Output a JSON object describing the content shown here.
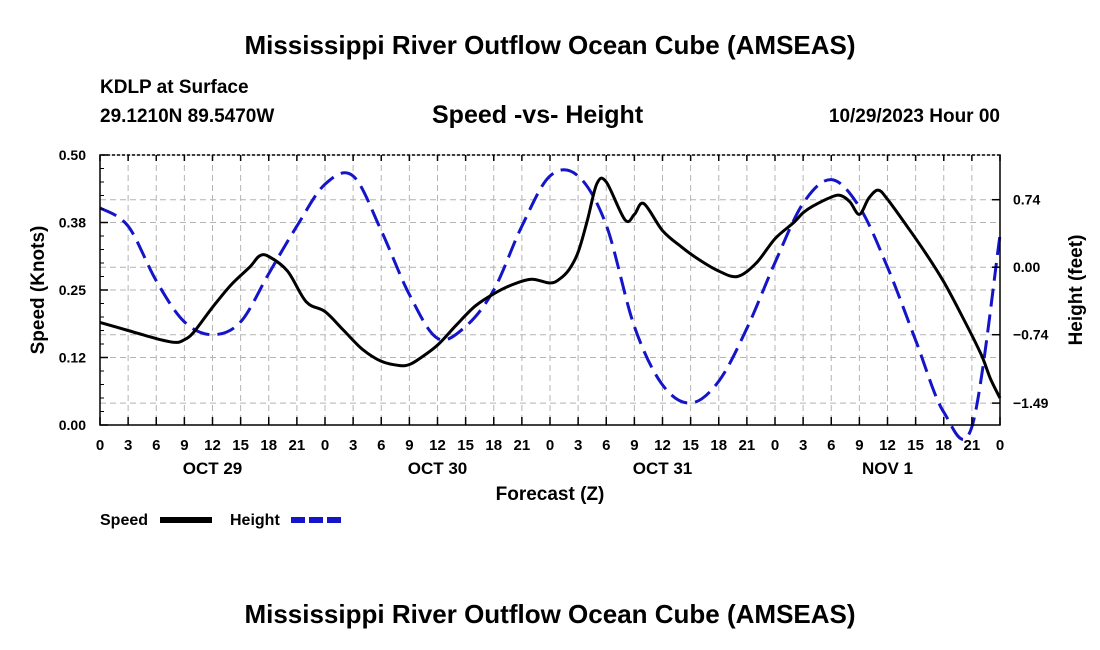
{
  "header": {
    "title": "Mississippi River Outflow Ocean Cube (AMSEAS)",
    "station": "KDLP at Surface",
    "coordinates": "29.1210N  89.5470W",
    "subtitle": "Speed -vs- Height",
    "run_time": "10/29/2023 Hour 00"
  },
  "footer": {
    "title": "Mississippi River Outflow Ocean Cube (AMSEAS)"
  },
  "legend": {
    "speed_label": "Speed",
    "height_label": "Height"
  },
  "chart_data": {
    "type": "line",
    "xlabel": "Forecast (Z)",
    "x_range_hours": [
      0,
      96
    ],
    "x_tick_labels": [
      "0",
      "3",
      "6",
      "9",
      "12",
      "15",
      "18",
      "21",
      "0",
      "3",
      "6",
      "9",
      "12",
      "15",
      "18",
      "21",
      "0",
      "3",
      "6",
      "9",
      "12",
      "15",
      "18",
      "21",
      "0",
      "3",
      "6",
      "9",
      "12",
      "15",
      "18",
      "21",
      "0"
    ],
    "day_labels": [
      {
        "hour": 12,
        "label": "OCT 29"
      },
      {
        "hour": 36,
        "label": "OCT 30"
      },
      {
        "hour": 60,
        "label": "OCT 31"
      },
      {
        "hour": 84,
        "label": "NOV 1"
      }
    ],
    "left_axis": {
      "label": "Speed (Knots)",
      "range": [
        0,
        0.5
      ],
      "ticks": [
        0,
        0.125,
        0.25,
        0.375,
        0.5
      ],
      "tick_labels": [
        "0.00",
        "0.12",
        "0.25",
        "0.38",
        "0.50"
      ]
    },
    "right_axis": {
      "label": "Height (feet)",
      "range": [
        -1.73,
        1.23
      ],
      "ticks": [
        -1.49,
        -0.74,
        0.0,
        0.74
      ],
      "tick_labels": [
        "−1.49",
        "−0.74",
        "0.00",
        "0.74"
      ]
    },
    "series": [
      {
        "name": "Speed",
        "axis": "left",
        "color": "#000000",
        "dash": "solid",
        "x": [
          0,
          3,
          6,
          8,
          9,
          10,
          12,
          14,
          16,
          17,
          18,
          20,
          22,
          24,
          26,
          28,
          30,
          32,
          33,
          34,
          36,
          38,
          40,
          42,
          44,
          46,
          48,
          49,
          50,
          51,
          52,
          53,
          54,
          56,
          57,
          58,
          60,
          62,
          64,
          66,
          68,
          70,
          72,
          74,
          75,
          76,
          78,
          79,
          80,
          81,
          82,
          83,
          84,
          86,
          88,
          90,
          92,
          94,
          95,
          96
        ],
        "y": [
          0.19,
          0.175,
          0.16,
          0.153,
          0.158,
          0.172,
          0.218,
          0.26,
          0.293,
          0.313,
          0.312,
          0.285,
          0.228,
          0.21,
          0.175,
          0.14,
          0.118,
          0.11,
          0.112,
          0.122,
          0.148,
          0.185,
          0.22,
          0.243,
          0.26,
          0.27,
          0.263,
          0.27,
          0.287,
          0.32,
          0.38,
          0.447,
          0.45,
          0.38,
          0.39,
          0.41,
          0.36,
          0.33,
          0.305,
          0.285,
          0.275,
          0.3,
          0.345,
          0.375,
          0.393,
          0.405,
          0.422,
          0.425,
          0.413,
          0.39,
          0.42,
          0.435,
          0.418,
          0.37,
          0.32,
          0.265,
          0.2,
          0.13,
          0.085,
          0.05
        ]
      },
      {
        "name": "Height",
        "axis": "right",
        "color": "#1414c8",
        "dash": "dashed",
        "x": [
          0,
          3,
          6,
          9,
          12,
          15,
          18,
          21,
          24,
          27,
          30,
          33,
          36,
          39,
          42,
          45,
          48,
          51,
          54,
          57,
          60,
          63,
          66,
          69,
          72,
          75,
          78,
          81,
          84,
          87,
          90,
          93,
          96
        ],
        "y": [
          0.65,
          0.45,
          -0.15,
          -0.6,
          -0.74,
          -0.6,
          -0.07,
          0.45,
          0.91,
          1.0,
          0.4,
          -0.3,
          -0.78,
          -0.65,
          -0.25,
          0.45,
          1.0,
          1.0,
          0.46,
          -0.65,
          -1.29,
          -1.49,
          -1.25,
          -0.67,
          0.05,
          0.7,
          0.96,
          0.66,
          0.0,
          -0.8,
          -1.59,
          -1.75,
          0.35
        ]
      }
    ]
  }
}
